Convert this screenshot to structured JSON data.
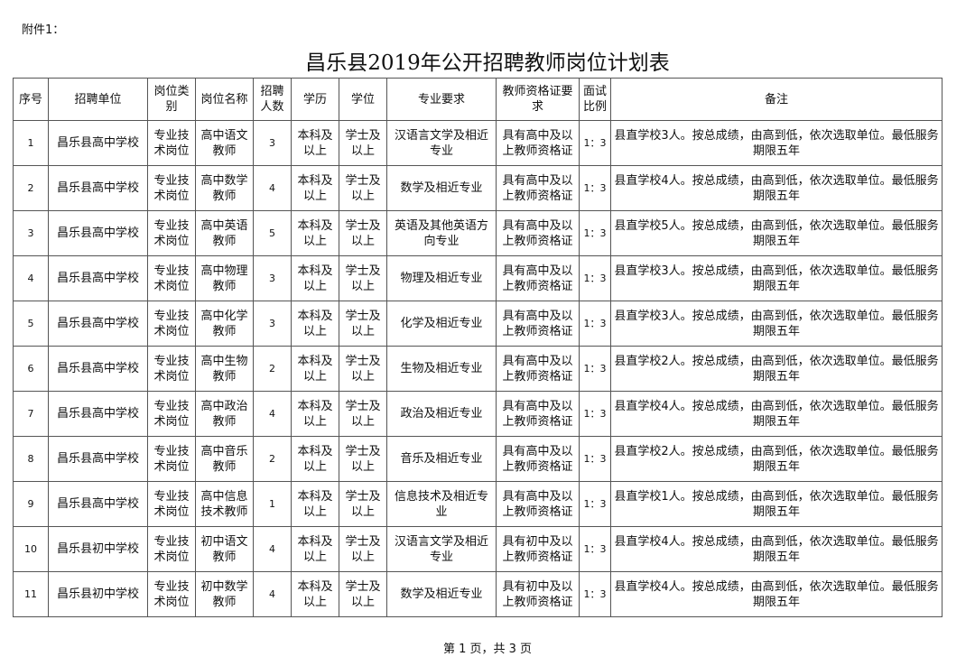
{
  "attachment": "附件1：",
  "title": "昌乐县2019年公开招聘教师岗位计划表",
  "headers": [
    "序号",
    "招聘单位",
    "岗位类别",
    "岗位名称",
    "招聘人数",
    "学历",
    "学位",
    "专业要求",
    "教师资格证要求",
    "面试比例",
    "备注"
  ],
  "rows": [
    [
      "1",
      "昌乐县高中学校",
      "专业技术岗位",
      "高中语文教师",
      "3",
      "本科及以上",
      "学士及以上",
      "汉语言文学及相近专业",
      "具有高中及以上教师资格证",
      "1：3",
      "县直学校3人。按总成绩，由高到低，依次选取单位。最低服务期限五年"
    ],
    [
      "2",
      "昌乐县高中学校",
      "专业技术岗位",
      "高中数学教师",
      "4",
      "本科及以上",
      "学士及以上",
      "数学及相近专业",
      "具有高中及以上教师资格证",
      "1：3",
      "县直学校4人。按总成绩，由高到低，依次选取单位。最低服务期限五年"
    ],
    [
      "3",
      "昌乐县高中学校",
      "专业技术岗位",
      "高中英语教师",
      "5",
      "本科及以上",
      "学士及以上",
      "英语及其他英语方向专业",
      "具有高中及以上教师资格证",
      "1：3",
      "县直学校5人。按总成绩，由高到低，依次选取单位。最低服务期限五年"
    ],
    [
      "4",
      "昌乐县高中学校",
      "专业技术岗位",
      "高中物理教师",
      "3",
      "本科及以上",
      "学士及以上",
      "物理及相近专业",
      "具有高中及以上教师资格证",
      "1：3",
      "县直学校3人。按总成绩，由高到低，依次选取单位。最低服务期限五年"
    ],
    [
      "5",
      "昌乐县高中学校",
      "专业技术岗位",
      "高中化学教师",
      "3",
      "本科及以上",
      "学士及以上",
      "化学及相近专业",
      "具有高中及以上教师资格证",
      "1：3",
      "县直学校3人。按总成绩，由高到低，依次选取单位。最低服务期限五年"
    ],
    [
      "6",
      "昌乐县高中学校",
      "专业技术岗位",
      "高中生物教师",
      "2",
      "本科及以上",
      "学士及以上",
      "生物及相近专业",
      "具有高中及以上教师资格证",
      "1：3",
      "县直学校2人。按总成绩，由高到低，依次选取单位。最低服务期限五年"
    ],
    [
      "7",
      "昌乐县高中学校",
      "专业技术岗位",
      "高中政治教师",
      "4",
      "本科及以上",
      "学士及以上",
      "政治及相近专业",
      "具有高中及以上教师资格证",
      "1：3",
      "县直学校4人。按总成绩，由高到低，依次选取单位。最低服务期限五年"
    ],
    [
      "8",
      "昌乐县高中学校",
      "专业技术岗位",
      "高中音乐教师",
      "2",
      "本科及以上",
      "学士及以上",
      "音乐及相近专业",
      "具有高中及以上教师资格证",
      "1：3",
      "县直学校2人。按总成绩，由高到低，依次选取单位。最低服务期限五年"
    ],
    [
      "9",
      "昌乐县高中学校",
      "专业技术岗位",
      "高中信息技术教师",
      "1",
      "本科及以上",
      "学士及以上",
      "信息技术及相近专业",
      "具有高中及以上教师资格证",
      "1：3",
      "县直学校1人。按总成绩，由高到低，依次选取单位。最低服务期限五年"
    ],
    [
      "10",
      "昌乐县初中学校",
      "专业技术岗位",
      "初中语文教师",
      "4",
      "本科及以上",
      "学士及以上",
      "汉语言文学及相近专业",
      "具有初中及以上教师资格证",
      "1：3",
      "县直学校4人。按总成绩，由高到低，依次选取单位。最低服务期限五年"
    ],
    [
      "11",
      "昌乐县初中学校",
      "专业技术岗位",
      "初中数学教师",
      "4",
      "本科及以上",
      "学士及以上",
      "数学及相近专业",
      "具有初中及以上教师资格证",
      "1：3",
      "县直学校4人。按总成绩，由高到低，依次选取单位。最低服务期限五年"
    ]
  ],
  "footer": "第 1 页，共 3 页"
}
